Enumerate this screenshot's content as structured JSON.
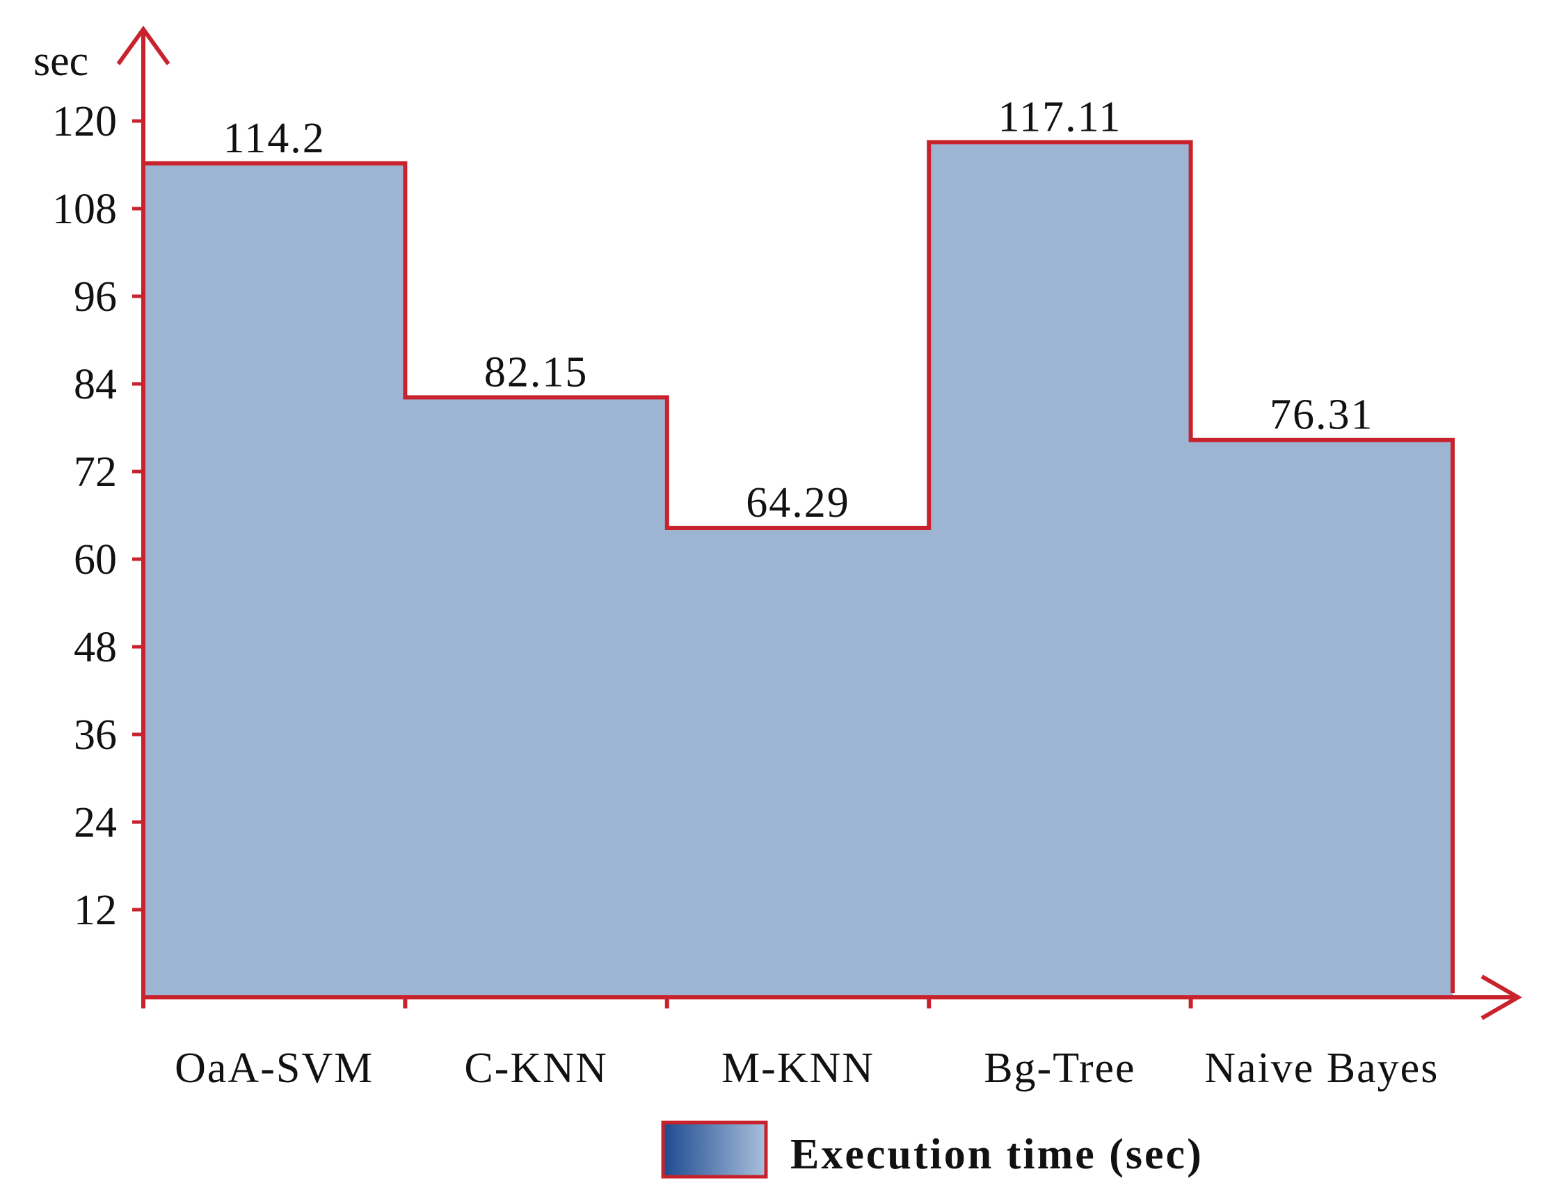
{
  "chart_data": {
    "type": "area",
    "step": true,
    "categories": [
      "OaA-SVM",
      "C-KNN",
      "M-KNN",
      "Bg-Tree",
      "Naive Bayes"
    ],
    "series": [
      {
        "name": "Execution time (sec)",
        "values": [
          114.2,
          82.15,
          64.29,
          117.11,
          76.31
        ]
      }
    ],
    "data_labels": [
      "114.2",
      "82.15",
      "64.29",
      "117.11",
      "76.31"
    ],
    "ylabel": "sec",
    "ylim": [
      0,
      120
    ],
    "yticks": [
      12,
      24,
      36,
      48,
      60,
      72,
      84,
      96,
      108,
      120
    ],
    "grid": false,
    "legend_position": "bottom-center",
    "colors": {
      "fill": "#9db5d2",
      "line": "#c8232c",
      "axis": "#c8232c",
      "legend_gradient_start": "#1d4a8f",
      "legend_gradient_end": "#a9c0dc"
    }
  }
}
